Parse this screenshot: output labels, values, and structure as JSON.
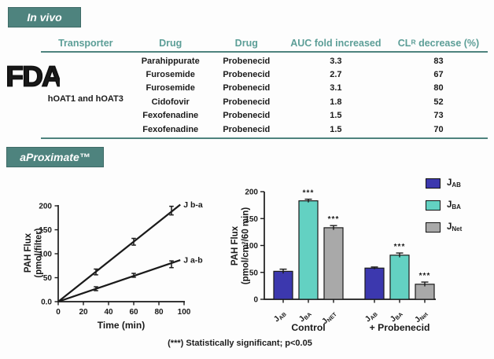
{
  "badges": {
    "in_vivo": "In vivo",
    "aproximate": "aProximate™"
  },
  "fda": {
    "logo_text": "FDA"
  },
  "invivo_table": {
    "headers": [
      "Transporter",
      "Drug",
      "Drug",
      "AUC fold increased"
    ],
    "clr_header": {
      "pre": "CL",
      "sub": "R",
      "post": " decrease (%)"
    },
    "transporter": "hOAT1 and hOAT3",
    "rows": [
      [
        "Parahippurate",
        "Probenecid",
        "3.3",
        "83"
      ],
      [
        "Furosemide",
        "Probenecid",
        "2.7",
        "67"
      ],
      [
        "Furosemide",
        "Probenecid",
        "3.1",
        "80"
      ],
      [
        "Cidofovir",
        "Probenecid",
        "1.8",
        "52"
      ],
      [
        "Fexofenadine",
        "Probenecid",
        "1.5",
        "73"
      ],
      [
        "Fexofenadine",
        "Probenecid",
        "1.5",
        "70"
      ]
    ]
  },
  "footnote": "(***) Statistically significant; p<0.05",
  "colors": {
    "accent_teal": "#4e837e",
    "header_teal": "#5c9e97",
    "bar_blue": "#3c38ae",
    "bar_teal": "#63d1c2",
    "bar_gray": "#a9a9a9",
    "axis_black": "#1a1a1a"
  },
  "chart_data": [
    {
      "id": "pah-flux-vs-time",
      "type": "line",
      "title": "",
      "xlabel": "Time (min)",
      "ylabel": [
        "PAH Flux",
        "(pmol/filter)"
      ],
      "xlim": [
        0,
        100
      ],
      "ylim": [
        0,
        200
      ],
      "xticks": [
        0,
        20,
        40,
        60,
        80,
        100
      ],
      "yticks": [
        0,
        50,
        100,
        150,
        200
      ],
      "ytick_labels": [
        "0.0",
        "50",
        "100",
        "150",
        "200"
      ],
      "grid": false,
      "series": [
        {
          "name": "J b-a",
          "x": [
            0,
            30,
            60,
            90
          ],
          "y": [
            0,
            62,
            125,
            190
          ],
          "yerr": [
            0,
            6,
            7,
            9
          ],
          "line_end_x": 97
        },
        {
          "name": "J a-b",
          "x": [
            0,
            30,
            60,
            90
          ],
          "y": [
            0,
            27,
            55,
            78
          ],
          "yerr": [
            0,
            4,
            4,
            7
          ],
          "line_end_x": 97
        }
      ]
    },
    {
      "id": "pah-flux-bars",
      "type": "bar",
      "title": "",
      "ylabel": [
        "PAH Flux",
        "(pmol/cm²/60 min)"
      ],
      "ylim": [
        0,
        200
      ],
      "yticks": [
        0,
        50,
        100,
        150,
        200
      ],
      "grid": false,
      "legend_position": "upper right",
      "groups": [
        {
          "label": "Control",
          "bars": [
            {
              "tick_main": "J",
              "tick_sub": "AB",
              "value": 52,
              "err": 4,
              "color_key": "bar_blue",
              "sig": ""
            },
            {
              "tick_main": "J",
              "tick_sub": "BA",
              "value": 183,
              "err": 3,
              "color_key": "bar_teal",
              "sig": "***"
            },
            {
              "tick_main": "J",
              "tick_sub": "NET",
              "value": 133,
              "err": 4,
              "color_key": "bar_gray",
              "sig": "***"
            }
          ]
        },
        {
          "label": "+ Probenecid",
          "bars": [
            {
              "tick_main": "J",
              "tick_sub": "AB",
              "value": 58,
              "err": 2,
              "color_key": "bar_blue",
              "sig": ""
            },
            {
              "tick_main": "J",
              "tick_sub": "BA",
              "value": 82,
              "err": 4,
              "color_key": "bar_teal",
              "sig": "***"
            },
            {
              "tick_main": "J",
              "tick_sub": "Net",
              "value": 28,
              "err": 4,
              "color_key": "bar_gray",
              "sig": "***"
            }
          ]
        }
      ],
      "legend": [
        {
          "main": "J",
          "sub": "AB",
          "color_key": "bar_blue"
        },
        {
          "main": "J",
          "sub": "BA",
          "color_key": "bar_teal"
        },
        {
          "main": "J",
          "sub": "Net",
          "color_key": "bar_gray"
        }
      ]
    }
  ]
}
